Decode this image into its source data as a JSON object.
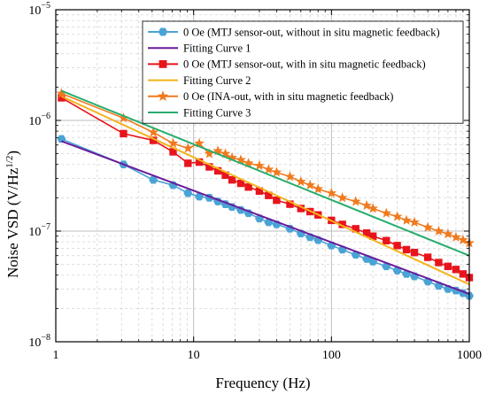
{
  "chart_data": {
    "type": "scatter",
    "xlabel": "Frequency (Hz)",
    "ylabel": {
      "prefix": "Noise VSD (V/Hz",
      "sup": "1/2",
      "suffix": ")"
    },
    "x_scale": "log",
    "y_scale": "log",
    "xlim": [
      1,
      1000
    ],
    "ylim": [
      1e-08,
      1e-05
    ],
    "x_ticks": [
      {
        "value": 1,
        "label": "1"
      },
      {
        "value": 10,
        "label": "10"
      },
      {
        "value": 100,
        "label": "100"
      },
      {
        "value": 1000,
        "label": "1000"
      }
    ],
    "y_ticks": [
      {
        "value": 1e-08,
        "base": "10",
        "exp": "−8"
      },
      {
        "value": 1e-07,
        "base": "10",
        "exp": "−7"
      },
      {
        "value": 1e-06,
        "base": "10",
        "exp": "−6"
      },
      {
        "value": 1e-05,
        "base": "10",
        "exp": "−5"
      }
    ],
    "grid": true,
    "legend_position": "top-right",
    "series": [
      {
        "name": "0 Oe (MTJ sensor-out, without in situ magnetic feedback)",
        "kind": "line+markers",
        "marker": "hexagon",
        "color": "#4aa3d6",
        "x": [
          1.1,
          3.1,
          5.1,
          7.1,
          9.1,
          11,
          13,
          15,
          17,
          19,
          22,
          25,
          30,
          35,
          40,
          50,
          60,
          70,
          80,
          100,
          120,
          150,
          180,
          200,
          250,
          300,
          350,
          400,
          500,
          600,
          700,
          800,
          900,
          1000
        ],
        "values": [
          6.8e-07,
          4e-07,
          2.9e-07,
          2.6e-07,
          2.2e-07,
          2.05e-07,
          2e-07,
          1.85e-07,
          1.75e-07,
          1.65e-07,
          1.55e-07,
          1.45e-07,
          1.3e-07,
          1.2e-07,
          1.15e-07,
          1.05e-07,
          9.5e-08,
          8.8e-08,
          8.3e-08,
          7.4e-08,
          6.8e-08,
          6.1e-08,
          5.6e-08,
          5.3e-08,
          4.8e-08,
          4.4e-08,
          4.1e-08,
          3.9e-08,
          3.5e-08,
          3.2e-08,
          3e-08,
          2.9e-08,
          2.75e-08,
          2.6e-08
        ]
      },
      {
        "name": "Fitting Curve 1",
        "kind": "line",
        "color": "#6a1b9a",
        "x": [
          1.1,
          1000
        ],
        "values": [
          6.5e-07,
          2.7e-08
        ]
      },
      {
        "name": "0 Oe (MTJ sensor-out, with in situ magnetic feedback)",
        "kind": "line+markers",
        "marker": "square",
        "color": "#e8141c",
        "x": [
          1.1,
          3.1,
          5.1,
          7.1,
          9.1,
          11,
          13,
          15,
          17,
          19,
          22,
          25,
          30,
          35,
          40,
          50,
          60,
          70,
          80,
          100,
          120,
          150,
          180,
          200,
          250,
          300,
          350,
          400,
          500,
          600,
          700,
          800,
          900,
          1000
        ],
        "values": [
          1.6e-06,
          7.6e-07,
          6.6e-07,
          5.2e-07,
          4.1e-07,
          4.2e-07,
          3.8e-07,
          3.5e-07,
          3.2e-07,
          2.9e-07,
          2.7e-07,
          2.5e-07,
          2.3e-07,
          2.1e-07,
          1.9e-07,
          1.75e-07,
          1.6e-07,
          1.5e-07,
          1.4e-07,
          1.25e-07,
          1.15e-07,
          1.05e-07,
          9.6e-08,
          9e-08,
          8.2e-08,
          7.4e-08,
          6.8e-08,
          6.4e-08,
          5.8e-08,
          5.2e-08,
          4.8e-08,
          4.5e-08,
          4.1e-08,
          3.8e-08
        ]
      },
      {
        "name": "Fitting Curve 2",
        "kind": "line",
        "color": "#f5b31b",
        "x": [
          1.1,
          1000
        ],
        "values": [
          1.65e-06,
          3.3e-08
        ]
      },
      {
        "name": "0 Oe (INA-out, with in situ magnetic feedback)",
        "kind": "line+markers",
        "marker": "star",
        "color": "#f07a1e",
        "x": [
          1.1,
          3.1,
          5.1,
          7.1,
          9.1,
          11,
          13,
          15,
          17,
          19,
          22,
          25,
          30,
          35,
          40,
          50,
          60,
          70,
          80,
          100,
          120,
          150,
          180,
          200,
          250,
          300,
          350,
          400,
          500,
          600,
          700,
          800,
          900,
          1000
        ],
        "values": [
          1.75e-06,
          1.05e-06,
          7.8e-07,
          6.2e-07,
          5.6e-07,
          6.2e-07,
          5e-07,
          5.3e-07,
          5e-07,
          4.6e-07,
          4.4e-07,
          4.1e-07,
          3.9e-07,
          3.6e-07,
          3.4e-07,
          3.1e-07,
          2.8e-07,
          2.6e-07,
          2.4e-07,
          2.2e-07,
          2e-07,
          1.85e-07,
          1.7e-07,
          1.6e-07,
          1.45e-07,
          1.35e-07,
          1.25e-07,
          1.2e-07,
          1.08e-07,
          1e-07,
          9.4e-08,
          8.8e-08,
          8.3e-08,
          7.8e-08
        ]
      },
      {
        "name": "Fitting Curve 3",
        "kind": "line",
        "color": "#26ad6e",
        "x": [
          1.1,
          1000
        ],
        "values": [
          1.85e-06,
          6e-08
        ]
      }
    ]
  }
}
